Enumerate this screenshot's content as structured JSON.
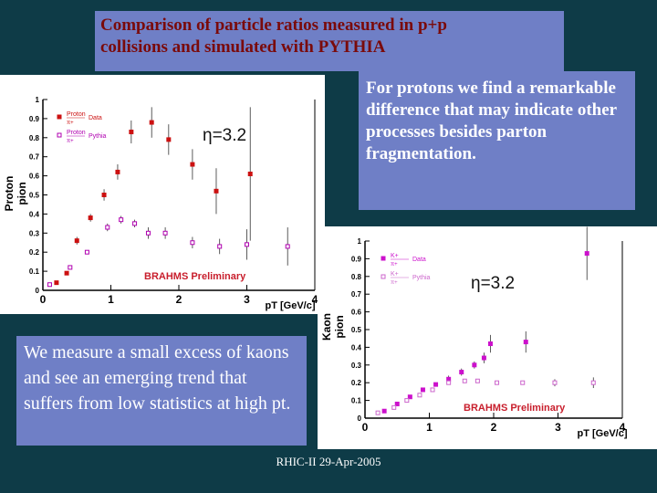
{
  "title": {
    "line1": "Comparison of particle ratios measured in p+p",
    "line2": "collisions and simulated with PYTHIA"
  },
  "protons_note": "For protons we find a remarkable difference that may indicate other processes besides parton fragmentation.",
  "kaons_note": "We measure a small excess of kaons and see an emerging trend that suffers from low statistics at high pt.",
  "footer": "RHIC-II 29-Apr-2005",
  "chart_data": [
    {
      "type": "scatter",
      "annotation": "η=3.2",
      "watermark": "BRAHMS Preliminary",
      "ylabel_top": "Proton",
      "ylabel_bottom": "pion",
      "xlabel": "pT [GeV/c]",
      "xlim": [
        0,
        4
      ],
      "ylim": [
        0,
        1
      ],
      "xticks": [
        "0",
        "1",
        "2",
        "3",
        "4"
      ],
      "yticks": [
        "0",
        "0.1",
        "0.2",
        "0.3",
        "0.4",
        "0.5",
        "0.6",
        "0.7",
        "0.8",
        "0.9",
        "1"
      ],
      "legend": {
        "placement": "top-left",
        "entries": [
          [
            "Proton",
            "π+",
            "Data"
          ],
          [
            "Proton",
            "π+",
            "Pythia"
          ]
        ]
      },
      "series": [
        {
          "name": "Data",
          "color": "#cc1111",
          "marker": "filled-square",
          "points": [
            [
              0.2,
              0.04
            ],
            [
              0.35,
              0.09
            ],
            [
              0.5,
              0.26
            ],
            [
              0.7,
              0.38
            ],
            [
              0.9,
              0.5
            ],
            [
              1.1,
              0.62
            ],
            [
              1.3,
              0.83
            ],
            [
              1.6,
              0.88
            ],
            [
              1.85,
              0.79
            ],
            [
              2.2,
              0.66
            ],
            [
              2.55,
              0.52
            ],
            [
              3.05,
              0.61
            ]
          ],
          "yerr": [
            0.01,
            0.01,
            0.02,
            0.02,
            0.03,
            0.04,
            0.06,
            0.08,
            0.08,
            0.08,
            0.12,
            0.35
          ]
        },
        {
          "name": "Pythia",
          "color": "#b000b0",
          "marker": "open-square",
          "points": [
            [
              0.1,
              0.03
            ],
            [
              0.4,
              0.12
            ],
            [
              0.65,
              0.2
            ],
            [
              0.95,
              0.33
            ],
            [
              1.15,
              0.37
            ],
            [
              1.35,
              0.35
            ],
            [
              1.55,
              0.3
            ],
            [
              1.8,
              0.3
            ],
            [
              2.2,
              0.25
            ],
            [
              2.6,
              0.23
            ],
            [
              3.0,
              0.24
            ],
            [
              3.6,
              0.23
            ]
          ],
          "yerr": [
            0.005,
            0.01,
            0.01,
            0.02,
            0.02,
            0.02,
            0.03,
            0.03,
            0.03,
            0.04,
            0.08,
            0.1
          ]
        }
      ]
    },
    {
      "type": "scatter",
      "annotation": "η=3.2",
      "watermark": "BRAHMS Preliminary",
      "ylabel_top": "Kaon",
      "ylabel_bottom": "pion",
      "xlabel": "pT [GeV/c]",
      "xlim": [
        0,
        4
      ],
      "ylim": [
        0,
        1
      ],
      "xticks": [
        "0",
        "1",
        "2",
        "3",
        "4"
      ],
      "yticks": [
        "0",
        "0.1",
        "0.2",
        "0.3",
        "0.4",
        "0.5",
        "0.6",
        "0.7",
        "0.8",
        "0.9",
        "1"
      ],
      "legend": {
        "placement": "top-left",
        "entries": [
          [
            "K+",
            "π+",
            "Data"
          ],
          [
            "K+",
            "π+",
            "Pythia"
          ]
        ]
      },
      "series": [
        {
          "name": "Data",
          "color": "#cc11cc",
          "marker": "filled-square",
          "points": [
            [
              0.3,
              0.04
            ],
            [
              0.5,
              0.08
            ],
            [
              0.7,
              0.12
            ],
            [
              0.9,
              0.16
            ],
            [
              1.1,
              0.19
            ],
            [
              1.3,
              0.22
            ],
            [
              1.5,
              0.26
            ],
            [
              1.7,
              0.3
            ],
            [
              1.85,
              0.34
            ],
            [
              1.95,
              0.42
            ],
            [
              2.5,
              0.43
            ],
            [
              3.45,
              0.93
            ]
          ],
          "yerr": [
            0.005,
            0.01,
            0.01,
            0.01,
            0.01,
            0.02,
            0.02,
            0.02,
            0.03,
            0.05,
            0.06,
            0.15
          ]
        },
        {
          "name": "Pythia",
          "color": "#cc66cc",
          "marker": "open-square",
          "points": [
            [
              0.2,
              0.03
            ],
            [
              0.45,
              0.06
            ],
            [
              0.65,
              0.1
            ],
            [
              0.85,
              0.13
            ],
            [
              1.05,
              0.16
            ],
            [
              1.3,
              0.2
            ],
            [
              1.55,
              0.21
            ],
            [
              1.75,
              0.21
            ],
            [
              2.05,
              0.2
            ],
            [
              2.45,
              0.2
            ],
            [
              2.95,
              0.2
            ],
            [
              3.55,
              0.2
            ]
          ],
          "yerr": [
            0.004,
            0.005,
            0.005,
            0.006,
            0.007,
            0.008,
            0.01,
            0.01,
            0.01,
            0.01,
            0.02,
            0.03
          ]
        }
      ]
    }
  ]
}
